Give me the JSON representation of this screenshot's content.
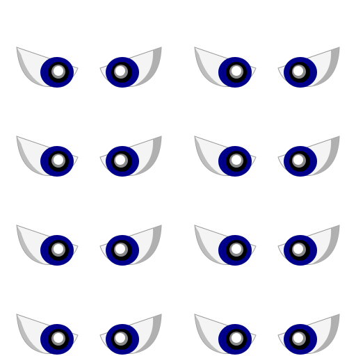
{
  "colors": {
    "background": "#ffffff",
    "eye_white": "#f4f4f4",
    "eye_shade": "#b0b0b0",
    "eye_outline": "#9a9a9a",
    "iris": "#00008b",
    "iris_ring": "#000000",
    "pupil_outer": "#8a8a8a",
    "pupil_inner": "#ffffff"
  },
  "sprite_sheet": {
    "rows": 4,
    "columns": 2,
    "frames": [
      {
        "look": "left",
        "pair": "row1-col1"
      },
      {
        "look": "right",
        "pair": "row1-col2"
      },
      {
        "look": "left",
        "pair": "row2-col1"
      },
      {
        "look": "right",
        "pair": "row2-col2"
      },
      {
        "look": "left",
        "pair": "row3-col1"
      },
      {
        "look": "right",
        "pair": "row3-col2"
      },
      {
        "look": "left",
        "pair": "row4-col1"
      },
      {
        "look": "right",
        "pair": "row4-col2"
      }
    ]
  }
}
